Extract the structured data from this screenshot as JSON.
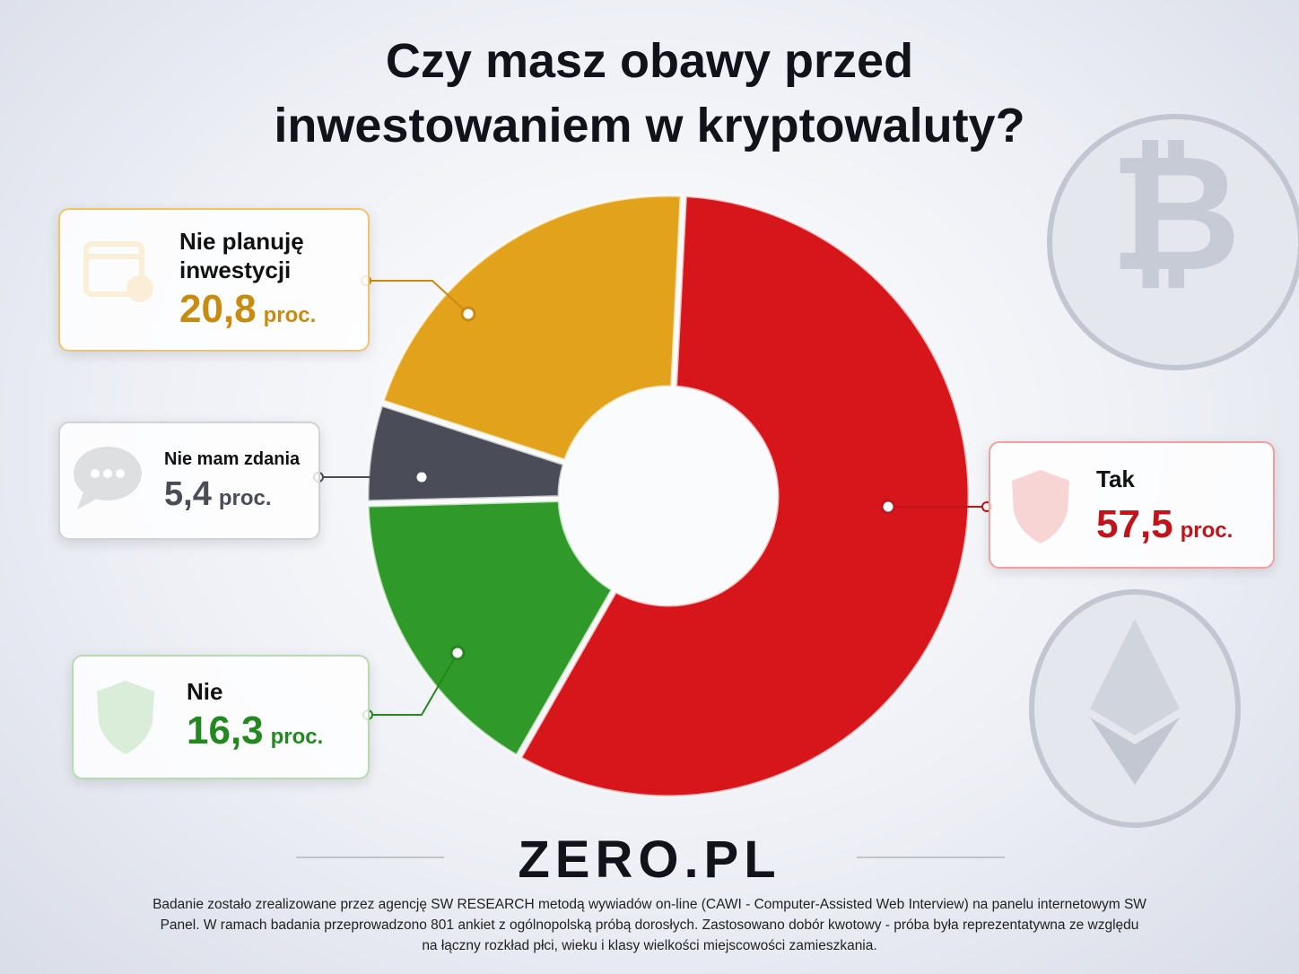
{
  "chart_data": {
    "type": "pie",
    "title": "Czy masz obawy przed inwestowaniem w kryptowaluty?",
    "categories": [
      "Tak",
      "Nie",
      "Nie mam zdania",
      "Nie planuję inwestycji"
    ],
    "values": [
      57.5,
      16.3,
      5.4,
      20.8
    ],
    "value_labels": [
      "57,5",
      "16,3",
      "5,4",
      "20,8"
    ],
    "unit_label": "proc.",
    "colors": [
      "#d7161b",
      "#2f9a2a",
      "#4a4d57",
      "#e2a21c"
    ],
    "label_colors": [
      "#c0141a",
      "#23881f",
      "#4a4d57",
      "#c98a10"
    ]
  },
  "logo": "ZERO.PL",
  "footer": "Badanie zostało zrealizowane przez agencję SW RESEARCH metodą wywiadów on-line (CAWI - Computer-Assisted Web Interview) na panelu internetowym SW Panel. W ramach badania przeprowadzono 801 ankiet z ogólnopolską próbą dorosłych. Zastosowano dobór kwotowy - próba była reprezentatywna ze względu na łączny rozkład płci, wieku i klasy wielkości miejscowości zamieszkania."
}
